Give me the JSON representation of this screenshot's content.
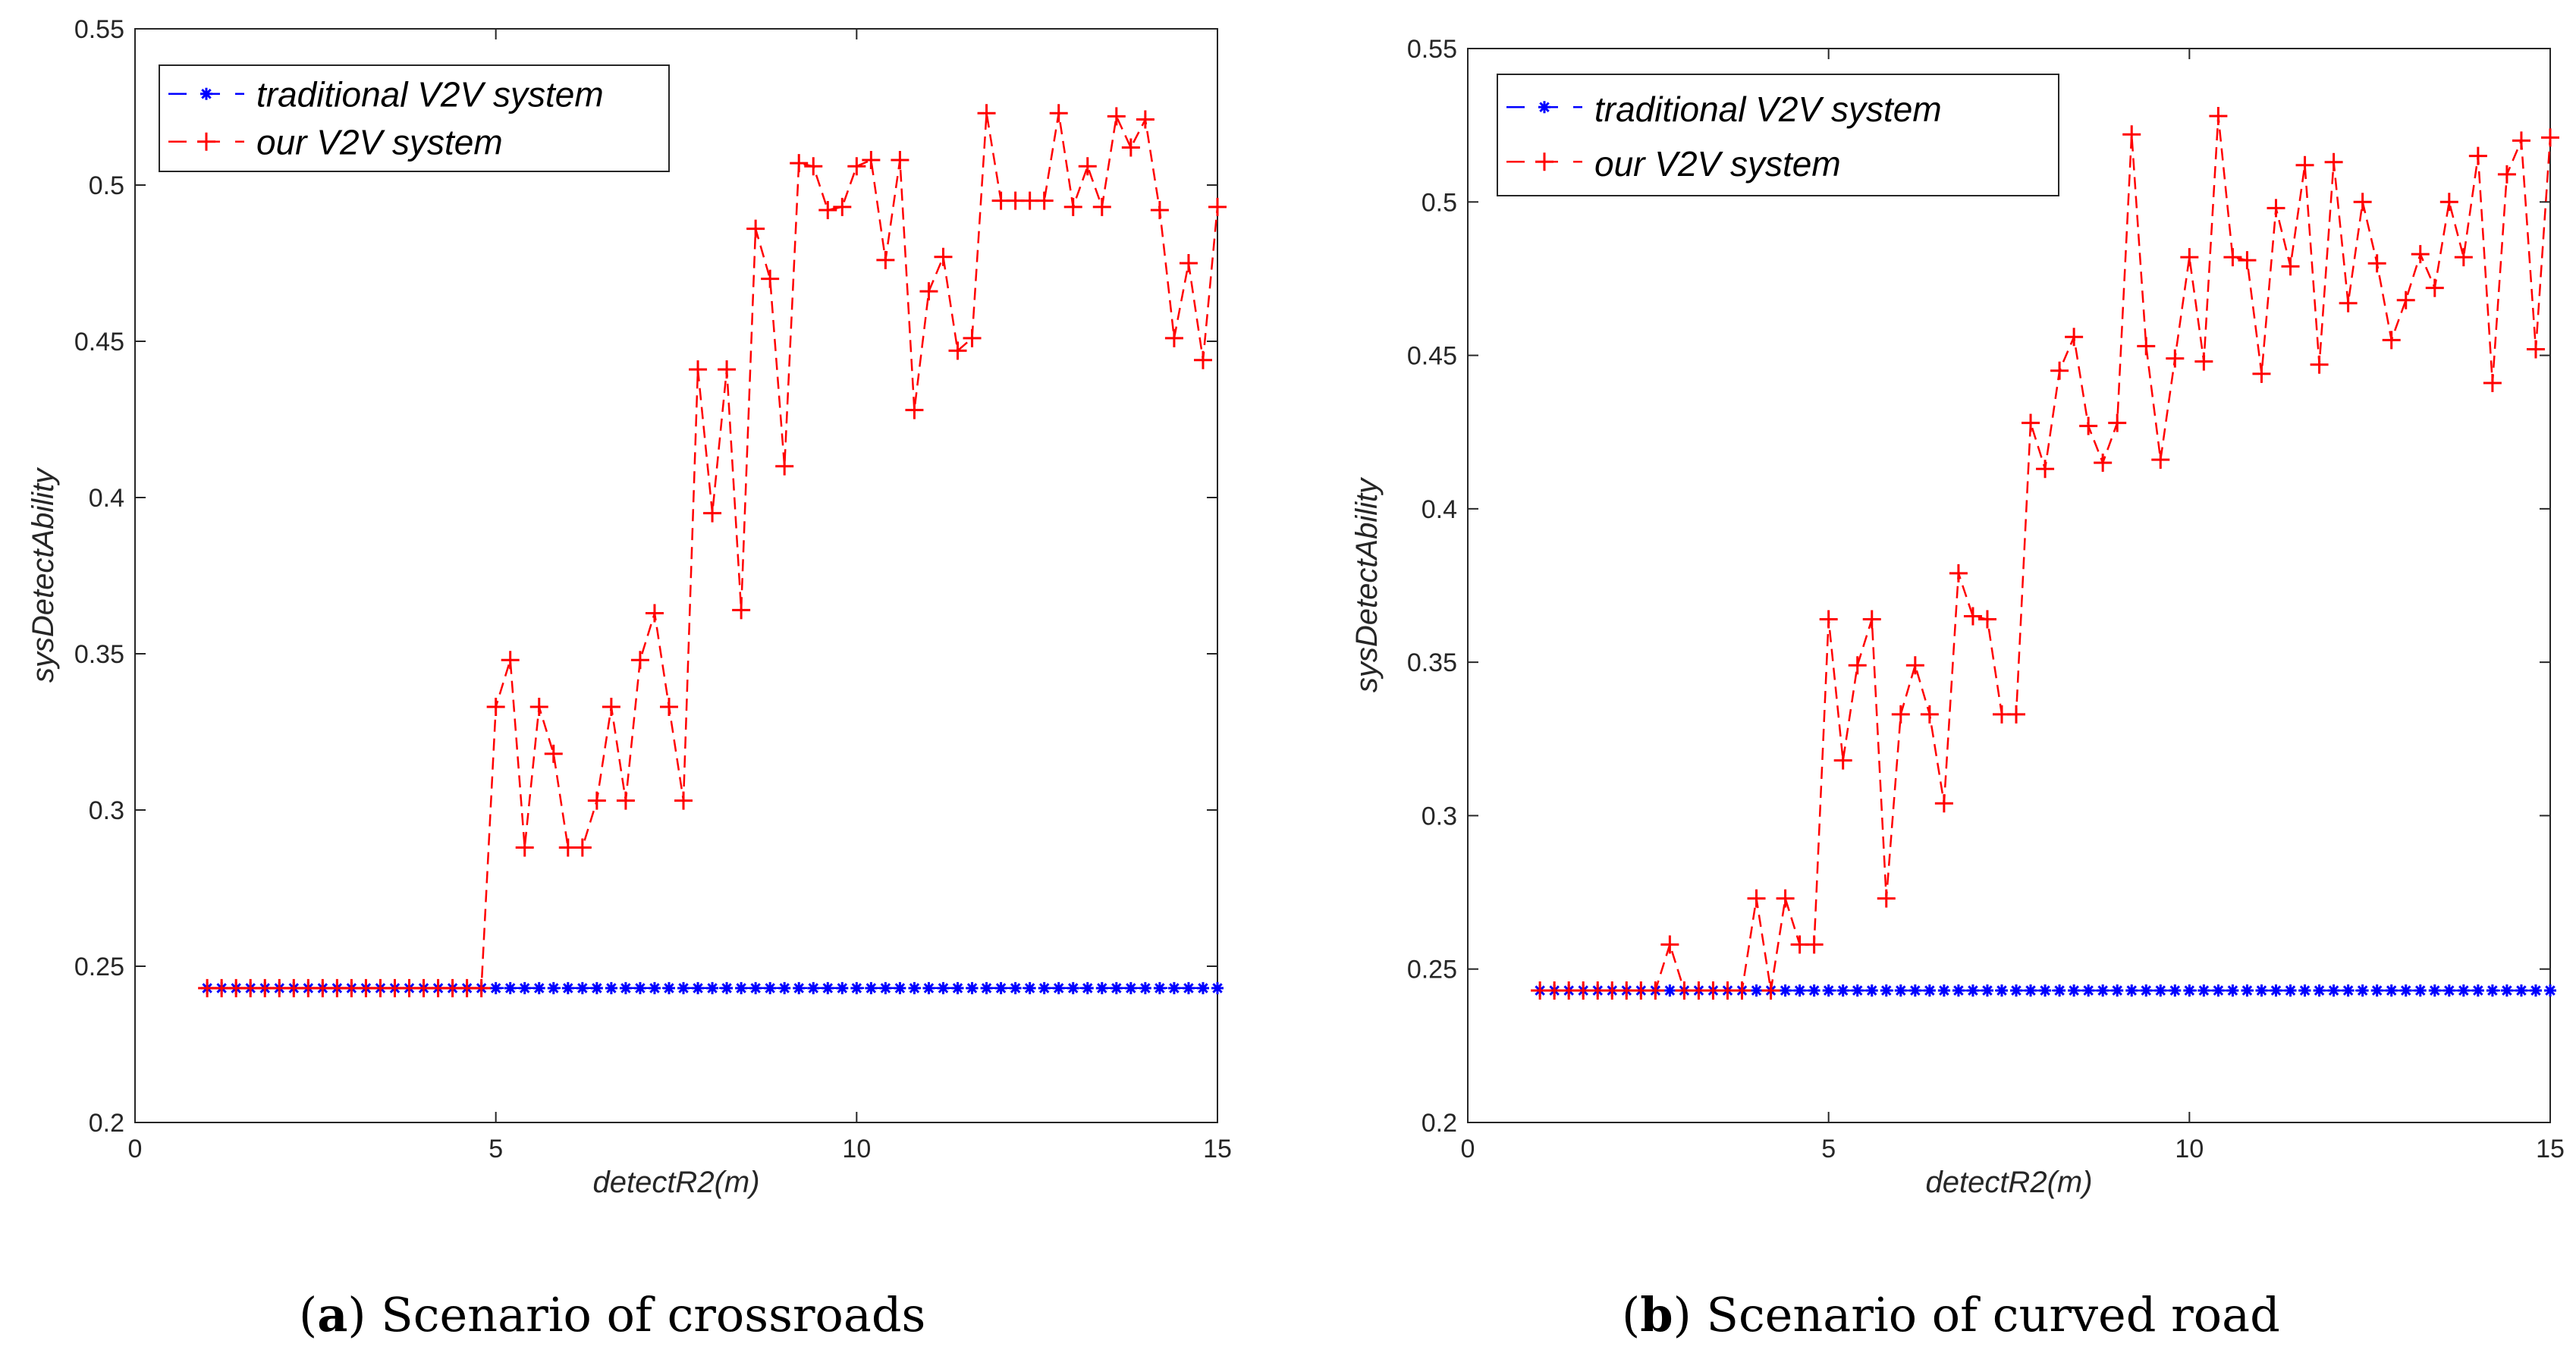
{
  "colors": {
    "traditional": "#0000ff",
    "ours": "#ff0000",
    "axis": "#262626"
  },
  "captions": [
    {
      "label": "a",
      "text": "Scenario of crossroads"
    },
    {
      "label": "b",
      "text": "Scenario of curved road"
    }
  ],
  "chart_data": [
    {
      "type": "line",
      "xlabel": "detectR2(m)",
      "ylabel": "sysDetectAbility",
      "xlim": [
        0,
        15
      ],
      "ylim": [
        0.2,
        0.55
      ],
      "xticks": [
        0,
        5,
        10,
        15
      ],
      "yticks": [
        0.2,
        0.25,
        0.3,
        0.35,
        0.4,
        0.45,
        0.5,
        0.55
      ],
      "xtick_labels": [
        "0",
        "5",
        "10",
        "15"
      ],
      "ytick_labels": [
        "0.2",
        "0.25",
        "0.3",
        "0.35",
        "0.4",
        "0.45",
        "0.5",
        "0.55"
      ],
      "legend_position": "top-left",
      "x": [
        1.0,
        1.2,
        1.4,
        1.6,
        1.8,
        2.0,
        2.2,
        2.4,
        2.6,
        2.8,
        3.0,
        3.2,
        3.4,
        3.6,
        3.8,
        4.0,
        4.2,
        4.4,
        4.6,
        4.8,
        5.0,
        5.2,
        5.4,
        5.6,
        5.8,
        6.0,
        6.2,
        6.4,
        6.6,
        6.8,
        7.0,
        7.2,
        7.4,
        7.6,
        7.8,
        8.0,
        8.2,
        8.4,
        8.6,
        8.8,
        9.0,
        9.2,
        9.4,
        9.6,
        9.8,
        10.0,
        10.2,
        10.4,
        10.6,
        10.8,
        11.0,
        11.2,
        11.4,
        11.6,
        11.8,
        12.0,
        12.2,
        12.4,
        12.6,
        12.8,
        13.0,
        13.2,
        13.4,
        13.6,
        13.8,
        14.0,
        14.2,
        14.4,
        14.6,
        14.8,
        15.0
      ],
      "series": [
        {
          "name": "traditional V2V system",
          "marker": "asterisk",
          "values": [
            0.243,
            0.243,
            0.243,
            0.243,
            0.243,
            0.243,
            0.243,
            0.243,
            0.243,
            0.243,
            0.243,
            0.243,
            0.243,
            0.243,
            0.243,
            0.243,
            0.243,
            0.243,
            0.243,
            0.243,
            0.243,
            0.243,
            0.243,
            0.243,
            0.243,
            0.243,
            0.243,
            0.243,
            0.243,
            0.243,
            0.243,
            0.243,
            0.243,
            0.243,
            0.243,
            0.243,
            0.243,
            0.243,
            0.243,
            0.243,
            0.243,
            0.243,
            0.243,
            0.243,
            0.243,
            0.243,
            0.243,
            0.243,
            0.243,
            0.243,
            0.243,
            0.243,
            0.243,
            0.243,
            0.243,
            0.243,
            0.243,
            0.243,
            0.243,
            0.243,
            0.243,
            0.243,
            0.243,
            0.243,
            0.243,
            0.243,
            0.243,
            0.243,
            0.243,
            0.243,
            0.243
          ]
        },
        {
          "name": "our V2V system",
          "marker": "plus",
          "values": [
            0.243,
            0.243,
            0.243,
            0.243,
            0.243,
            0.243,
            0.243,
            0.243,
            0.243,
            0.243,
            0.243,
            0.243,
            0.243,
            0.243,
            0.243,
            0.243,
            0.243,
            0.243,
            0.243,
            0.243,
            0.333,
            0.348,
            0.288,
            0.333,
            0.318,
            0.288,
            0.288,
            0.303,
            0.333,
            0.303,
            0.348,
            0.363,
            0.333,
            0.303,
            0.441,
            0.395,
            0.441,
            0.364,
            0.486,
            0.47,
            0.41,
            0.507,
            0.506,
            0.492,
            0.493,
            0.506,
            0.508,
            0.476,
            0.508,
            0.428,
            0.466,
            0.477,
            0.447,
            0.451,
            0.523,
            0.495,
            0.495,
            0.495,
            0.495,
            0.523,
            0.493,
            0.506,
            0.493,
            0.522,
            0.512,
            0.521,
            0.492,
            0.451,
            0.475,
            0.444,
            0.493
          ]
        }
      ]
    },
    {
      "type": "line",
      "xlabel": "detectR2(m)",
      "ylabel": "sysDetectAbility",
      "xlim": [
        0,
        15
      ],
      "ylim": [
        0.2,
        0.55
      ],
      "xticks": [
        0,
        5,
        10,
        15
      ],
      "yticks": [
        0.2,
        0.25,
        0.3,
        0.35,
        0.4,
        0.45,
        0.5,
        0.55
      ],
      "xtick_labels": [
        "0",
        "5",
        "10",
        "15"
      ],
      "ytick_labels": [
        "0.2",
        "0.25",
        "0.3",
        "0.35",
        "0.4",
        "0.45",
        "0.5",
        "0.55"
      ],
      "legend_position": "top-left",
      "x": [
        1.0,
        1.2,
        1.4,
        1.6,
        1.8,
        2.0,
        2.2,
        2.4,
        2.6,
        2.8,
        3.0,
        3.2,
        3.4,
        3.6,
        3.8,
        4.0,
        4.2,
        4.4,
        4.6,
        4.8,
        5.0,
        5.2,
        5.4,
        5.6,
        5.8,
        6.0,
        6.2,
        6.4,
        6.6,
        6.8,
        7.0,
        7.2,
        7.4,
        7.6,
        7.8,
        8.0,
        8.2,
        8.4,
        8.6,
        8.8,
        9.0,
        9.2,
        9.4,
        9.6,
        9.8,
        10.0,
        10.2,
        10.4,
        10.6,
        10.8,
        11.0,
        11.2,
        11.4,
        11.6,
        11.8,
        12.0,
        12.2,
        12.4,
        12.6,
        12.8,
        13.0,
        13.2,
        13.4,
        13.6,
        13.8,
        14.0,
        14.2,
        14.4,
        14.6,
        14.8,
        15.0
      ],
      "series": [
        {
          "name": "traditional V2V system",
          "marker": "asterisk",
          "values": [
            0.243,
            0.243,
            0.243,
            0.243,
            0.243,
            0.243,
            0.243,
            0.243,
            0.243,
            0.243,
            0.243,
            0.243,
            0.243,
            0.243,
            0.243,
            0.243,
            0.243,
            0.243,
            0.243,
            0.243,
            0.243,
            0.243,
            0.243,
            0.243,
            0.243,
            0.243,
            0.243,
            0.243,
            0.243,
            0.243,
            0.243,
            0.243,
            0.243,
            0.243,
            0.243,
            0.243,
            0.243,
            0.243,
            0.243,
            0.243,
            0.243,
            0.243,
            0.243,
            0.243,
            0.243,
            0.243,
            0.243,
            0.243,
            0.243,
            0.243,
            0.243,
            0.243,
            0.243,
            0.243,
            0.243,
            0.243,
            0.243,
            0.243,
            0.243,
            0.243,
            0.243,
            0.243,
            0.243,
            0.243,
            0.243,
            0.243,
            0.243,
            0.243,
            0.243,
            0.243,
            0.243
          ]
        },
        {
          "name": "our V2V system",
          "marker": "plus",
          "values": [
            0.243,
            0.243,
            0.243,
            0.243,
            0.243,
            0.243,
            0.243,
            0.243,
            0.243,
            0.258,
            0.243,
            0.243,
            0.243,
            0.243,
            0.243,
            0.273,
            0.243,
            0.273,
            0.258,
            0.258,
            0.364,
            0.318,
            0.349,
            0.364,
            0.273,
            0.333,
            0.349,
            0.333,
            0.304,
            0.379,
            0.365,
            0.364,
            0.333,
            0.333,
            0.428,
            0.413,
            0.445,
            0.456,
            0.427,
            0.415,
            0.428,
            0.522,
            0.453,
            0.416,
            0.449,
            0.482,
            0.448,
            0.528,
            0.482,
            0.481,
            0.444,
            0.498,
            0.479,
            0.512,
            0.447,
            0.513,
            0.467,
            0.5,
            0.48,
            0.455,
            0.468,
            0.483,
            0.472,
            0.5,
            0.482,
            0.515,
            0.441,
            0.509,
            0.52,
            0.452,
            0.521
          ]
        }
      ]
    }
  ]
}
